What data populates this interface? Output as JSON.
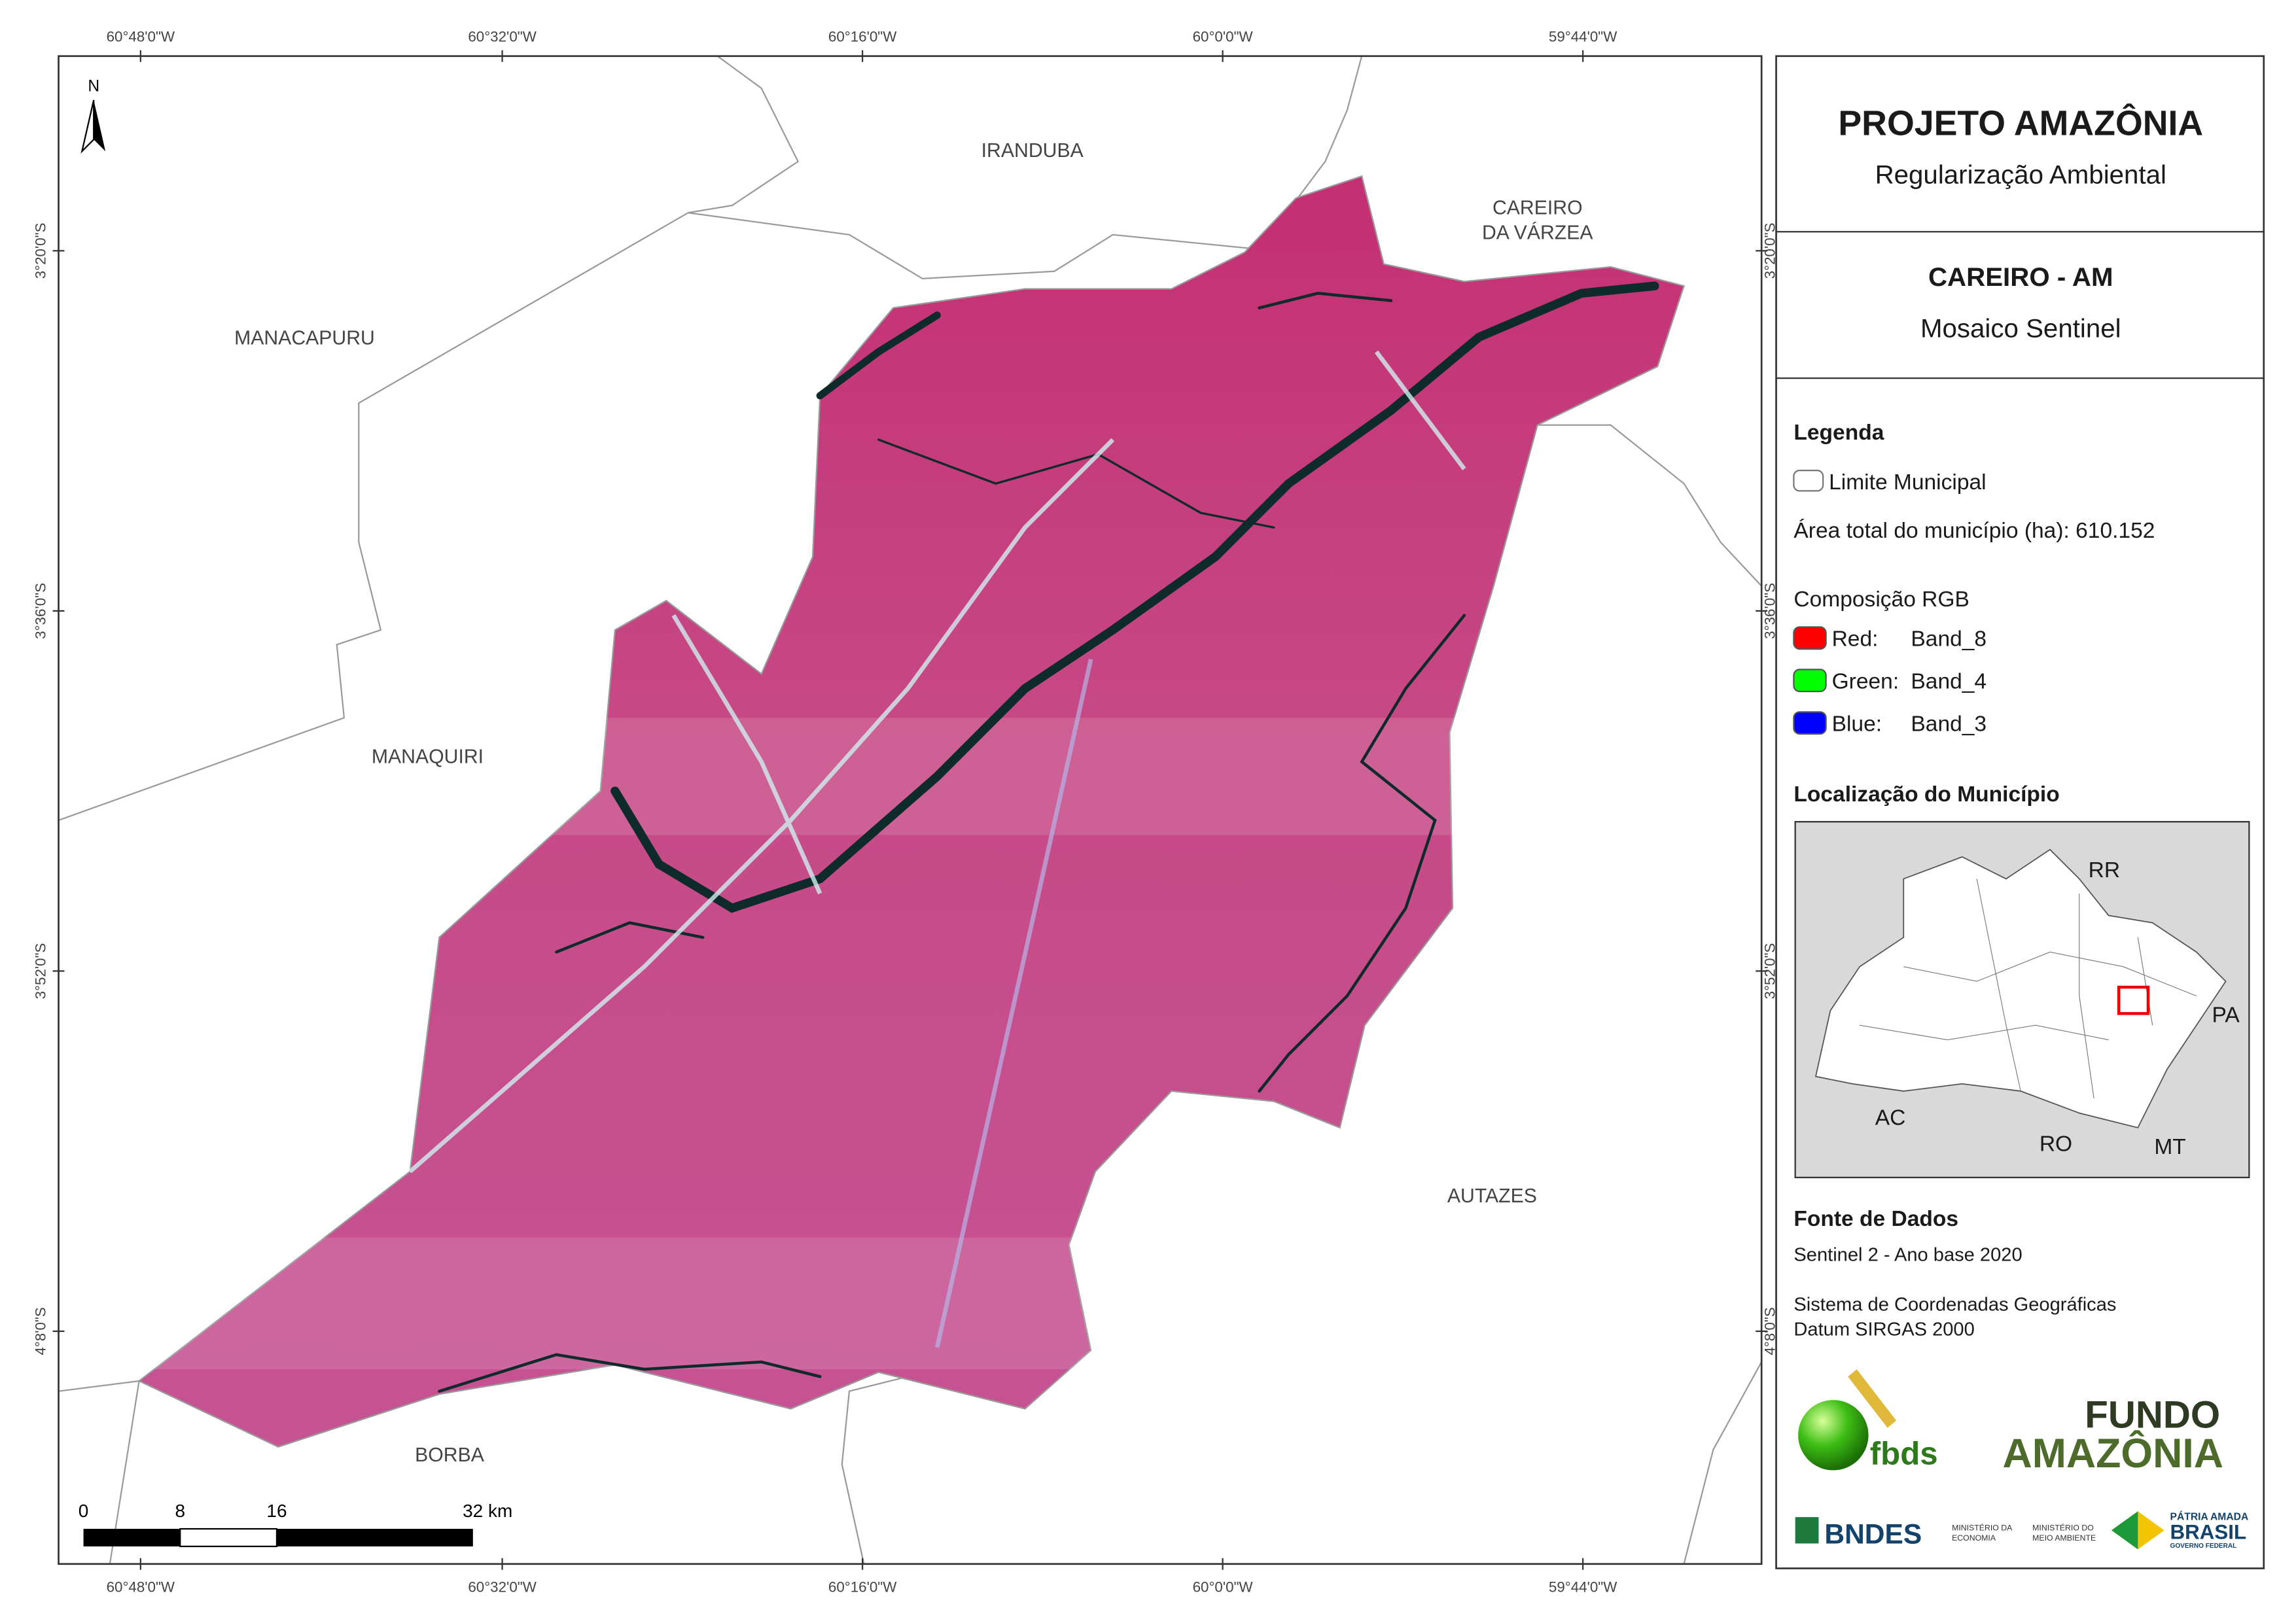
{
  "map": {
    "longitudes": [
      "60°48'0\"W",
      "60°32'0\"W",
      "60°16'0\"W",
      "60°0'0\"W",
      "59°44'0\"W"
    ],
    "latitudes": [
      "3°20'0\"S",
      "3°36'0\"S",
      "3°52'0\"S",
      "4°8'0\"S"
    ],
    "north": "N",
    "places": {
      "iranduba": "IRANDUBA",
      "careiro_varzea": [
        "CAREIRO",
        "DA VÁRZEA"
      ],
      "manacapuru": "MANACAPURU",
      "manaquiri": "MANAQUIRI",
      "autazes": "AUTAZES",
      "borba": "BORBA"
    },
    "scale_bar": [
      "0",
      "8",
      "16",
      "32 km"
    ]
  },
  "panel": {
    "title": "PROJETO AMAZÔNIA",
    "subtitle": "Regularização Ambiental",
    "municipality": "CAREIRO - AM",
    "product": "Mosaico Sentinel",
    "legend": {
      "title": "Legenda",
      "boundary": "Limite Municipal",
      "area": "Área total do município (ha): 610.152",
      "rgb_title": "Composição RGB",
      "bands": [
        {
          "channel": "Red:",
          "band": "Band_8",
          "color": "#ff0000"
        },
        {
          "channel": "Green:",
          "band": "Band_4",
          "color": "#00ff00"
        },
        {
          "channel": "Blue:",
          "band": "Band_3",
          "color": "#0000ff"
        }
      ]
    },
    "location": {
      "title": "Localização do Município",
      "states": [
        "RR",
        "PA",
        "AC",
        "RO",
        "MT"
      ]
    },
    "sources": {
      "title": "Fonte de Dados",
      "lines": [
        "Sentinel 2 - Ano base 2020",
        "Sistema de Coordenadas Geográficas",
        "Datum SIRGAS 2000"
      ]
    },
    "logos": {
      "fbds": "fbds",
      "fundo": [
        "FUNDO",
        "AMAZÔNIA"
      ],
      "bndes": "BNDES",
      "ministries": [
        "MINISTÉRIO DA",
        "ECONOMIA",
        "MINISTÉRIO DO",
        "MEIO AMBIENTE"
      ],
      "brasil": [
        "PÁTRIA AMADA",
        "BRASIL",
        "GOVERNO FEDERAL"
      ]
    }
  }
}
